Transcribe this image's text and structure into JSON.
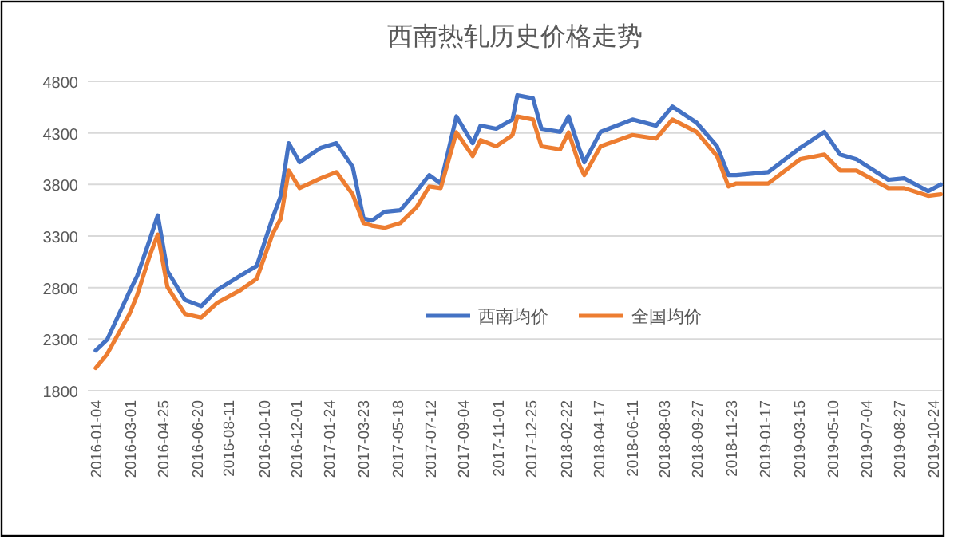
{
  "chart_data": {
    "type": "line",
    "title": "西南热轧历史价格走势",
    "x": [
      "2016-01-04",
      "2016-01-23",
      "2016-02-29",
      "2016-03-13",
      "2016-04-03",
      "2016-04-16",
      "2016-05-02",
      "2016-05-31",
      "2016-06-27",
      "2016-07-23",
      "2016-08-31",
      "2016-09-27",
      "2016-10-23",
      "2016-11-06",
      "2016-11-19",
      "2016-12-07",
      "2017-01-11",
      "2017-02-06",
      "2017-03-05",
      "2017-03-23",
      "2017-04-06",
      "2017-04-27",
      "2017-05-23",
      "2017-06-19",
      "2017-07-10",
      "2017-07-29",
      "2017-08-24",
      "2017-09-20",
      "2017-10-03",
      "2017-10-29",
      "2017-11-25",
      "2017-12-03",
      "2017-12-29",
      "2018-01-12",
      "2018-02-12",
      "2018-02-26",
      "2018-03-16",
      "2018-03-24",
      "2018-04-20",
      "2018-06-12",
      "2018-07-21",
      "2018-08-17",
      "2018-09-26",
      "2018-10-30",
      "2018-11-18",
      "2018-12-01",
      "2019-01-23",
      "2019-03-17",
      "2019-04-26",
      "2019-05-22",
      "2019-06-18",
      "2019-08-10",
      "2019-09-05",
      "2019-10-15",
      "2019-11-05"
    ],
    "series": [
      {
        "name": "西南均价",
        "color": "#4472c4",
        "values": [
          2190,
          2295,
          2760,
          2915,
          3270,
          3500,
          2960,
          2680,
          2620,
          2775,
          2915,
          3010,
          3470,
          3690,
          4200,
          4015,
          4155,
          4200,
          3970,
          3470,
          3450,
          3535,
          3550,
          3735,
          3890,
          3810,
          4460,
          4200,
          4370,
          4340,
          4430,
          4665,
          4635,
          4340,
          4310,
          4460,
          4140,
          4015,
          4310,
          4430,
          4370,
          4555,
          4400,
          4170,
          3890,
          3890,
          3920,
          4155,
          4310,
          4090,
          4045,
          3845,
          3860,
          3735,
          3800
        ]
      },
      {
        "name": "全国均价",
        "color": "#ed7d31",
        "values": [
          2020,
          2155,
          2545,
          2730,
          3115,
          3315,
          2805,
          2545,
          2510,
          2650,
          2775,
          2885,
          3315,
          3470,
          3935,
          3765,
          3860,
          3920,
          3705,
          3425,
          3400,
          3380,
          3425,
          3580,
          3780,
          3765,
          4305,
          4075,
          4230,
          4170,
          4280,
          4460,
          4430,
          4170,
          4140,
          4305,
          3985,
          3890,
          4170,
          4280,
          4245,
          4430,
          4310,
          4075,
          3780,
          3810,
          3810,
          4045,
          4090,
          3935,
          3935,
          3765,
          3765,
          3690,
          3705
        ]
      }
    ],
    "xlim": [
      "2015-12-22",
      "2019-11-07"
    ],
    "xticks": [
      "2016-01-04",
      "2016-03-01",
      "2016-04-25",
      "2016-06-20",
      "2016-08-11",
      "2016-10-10",
      "2016-12-01",
      "2017-01-24",
      "2017-03-23",
      "2017-05-18",
      "2017-07-12",
      "2017-09-04",
      "2017-11-01",
      "2017-12-25",
      "2018-02-22",
      "2018-04-17",
      "2018-06-11",
      "2018-08-03",
      "2018-09-27",
      "2018-11-23",
      "2019-01-17",
      "2019-03-15",
      "2019-05-10",
      "2019-07-04",
      "2019-08-27",
      "2019-10-24"
    ],
    "ylim": [
      1800,
      4800
    ],
    "yticks": [
      1800,
      2300,
      2800,
      3300,
      3800,
      4300,
      4800
    ],
    "grid": "y",
    "legend": "bottom",
    "marker": "none",
    "line_style": "solid"
  }
}
